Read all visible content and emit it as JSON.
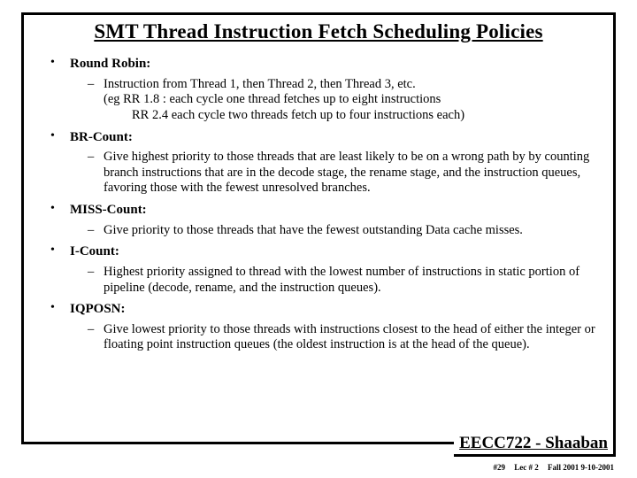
{
  "title": "SMT Thread Instruction Fetch Scheduling Policies",
  "policies": [
    {
      "heading": "Round Robin:",
      "desc_l1": "Instruction from Thread 1, then Thread 2, then Thread 3, etc.",
      "desc_l2": "(eg  RR 1.8  :  each cycle one thread fetches up to eight instructions",
      "desc_l3": "RR 2.4 each cycle two threads fetch up to four  instructions each)"
    },
    {
      "heading": "BR-Count:",
      "desc_l1": "Give highest priority to those threads that are least likely to be on a wrong path by by counting branch instructions that are in the decode stage, the rename stage, and the instruction queues, favoring those with the fewest unresolved branches."
    },
    {
      "heading": "MISS-Count:",
      "desc_l1": "Give priority to those threads that have the fewest outstanding Data cache misses."
    },
    {
      "heading": "I-Count:",
      "desc_l1": "Highest priority assigned to thread with the lowest number of instructions in static portion of pipeline (decode, rename, and the instruction queues)."
    },
    {
      "heading": "IQPOSN:",
      "desc_l1": "Give lowest priority to those threads with instructions closest to the head of either the integer or floating point instruction queues (the oldest instruction is at the head of the queue)."
    }
  ],
  "footer": {
    "course": "EECC722 - Shaaban",
    "slide_no": "#29",
    "lecture": "Lec # 2",
    "term": "Fall 2001 9-10-2001"
  }
}
